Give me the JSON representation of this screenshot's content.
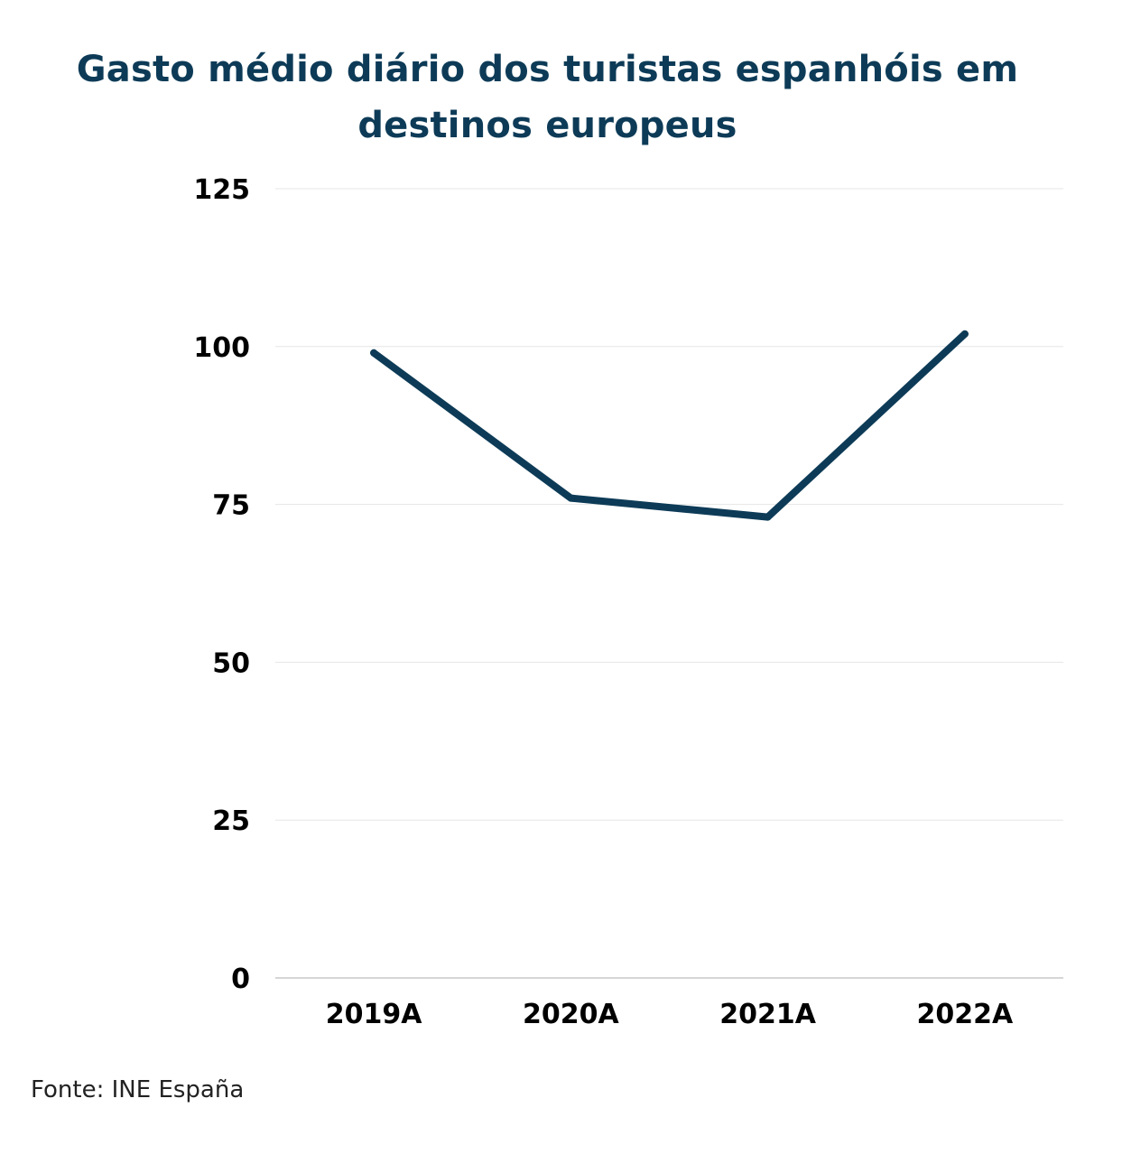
{
  "colors": {
    "title": "#0d3b57",
    "line": "#0d3b57",
    "gridline": "#e6e6e6",
    "baseline": "#c8c8c8"
  },
  "chart_data": {
    "type": "line",
    "title": "Gasto médio diário dos turistas espanhóis em destinos europeus",
    "xlabel": "",
    "ylabel": "",
    "categories": [
      "2019A",
      "2020A",
      "2021A",
      "2022A"
    ],
    "series": [
      {
        "values": [
          99,
          76,
          73,
          102
        ]
      }
    ],
    "yticks": [
      "0",
      "25",
      "50",
      "75",
      "100",
      "125"
    ],
    "ylim": [
      0,
      125
    ],
    "grid": true,
    "legend": "none"
  },
  "footer": {
    "source": "Fonte: INE España"
  }
}
